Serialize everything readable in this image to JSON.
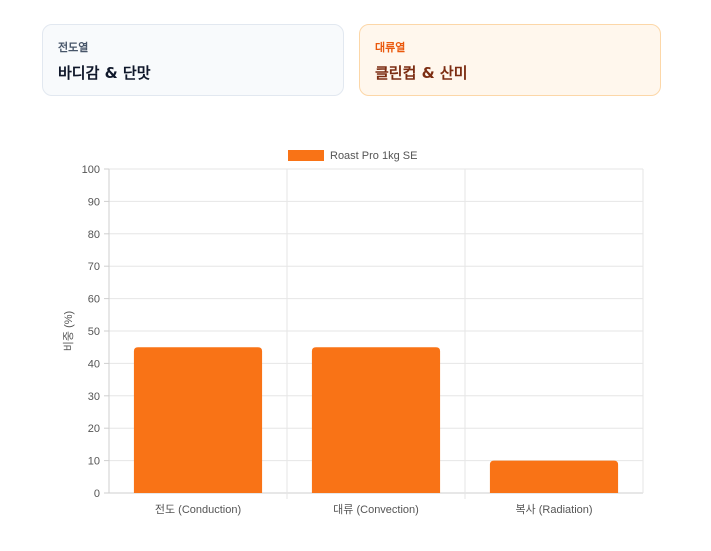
{
  "cards": [
    {
      "label": "전도열",
      "value": "바디감 & 단맛"
    },
    {
      "label": "대류열",
      "value": "클린컵 & 산미"
    }
  ],
  "chart_data": {
    "type": "bar",
    "categories": [
      "전도 (Conduction)",
      "대류 (Convection)",
      "복사 (Radiation)"
    ],
    "series": [
      {
        "name": "Roast Pro 1kg SE",
        "values": [
          45,
          45,
          10
        ],
        "color": "#f97316"
      }
    ],
    "ylabel": "비중 (%)",
    "xlabel": "",
    "ylim": [
      0,
      100
    ],
    "yticks": [
      0,
      10,
      20,
      30,
      40,
      50,
      60,
      70,
      80,
      90,
      100
    ],
    "grid": true,
    "legend": "top-center"
  }
}
